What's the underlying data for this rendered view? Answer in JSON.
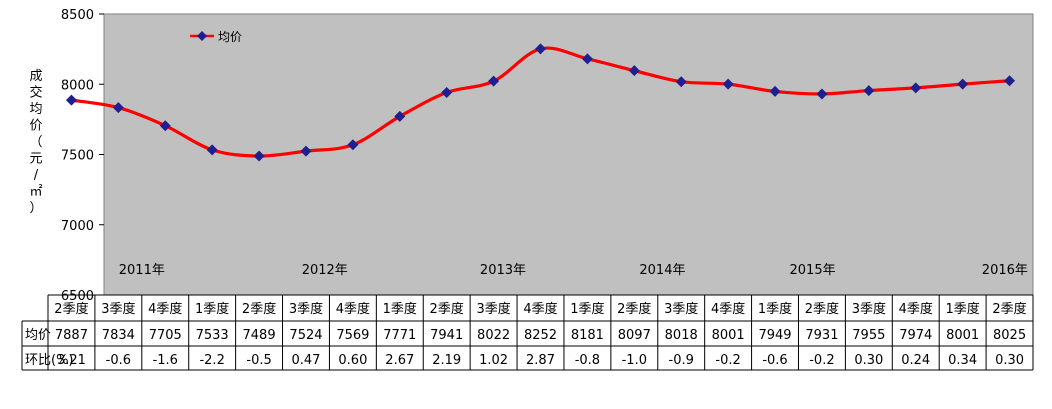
{
  "chart_data": {
    "type": "line",
    "ylabel": "成交均价（元/㎡）",
    "ylim": [
      6500,
      8500
    ],
    "yticks": [
      "6500",
      "7000",
      "7500",
      "8000",
      "8500"
    ],
    "legend": {
      "label": "均价",
      "placement": "top-left"
    },
    "grid": false,
    "background": "#c0c0c0",
    "line_color": "#ff0000",
    "marker_color": "#1f1f8f",
    "years": [
      "2011年",
      "2012年",
      "2013年",
      "2014年",
      "2015年",
      "2016年"
    ],
    "categories": [
      "2季度",
      "3季度",
      "4季度",
      "1季度",
      "2季度",
      "3季度",
      "4季度",
      "1季度",
      "2季度",
      "3季度",
      "4季度",
      "1季度",
      "2季度",
      "3季度",
      "4季度",
      "1季度",
      "2季度",
      "3季度",
      "4季度",
      "1季度",
      "2季度"
    ],
    "series": [
      {
        "name": "均价",
        "values": [
          7887,
          7834,
          7705,
          7533,
          7489,
          7524,
          7569,
          7771,
          7941,
          8022,
          8252,
          8181,
          8097,
          8018,
          8001,
          7949,
          7931,
          7955,
          7974,
          8001,
          8025
        ]
      }
    ],
    "table": {
      "row_labels": [
        "均价",
        "环比(%)"
      ],
      "price": [
        "7887",
        "7834",
        "7705",
        "7533",
        "7489",
        "7524",
        "7569",
        "7771",
        "7941",
        "8022",
        "8252",
        "8181",
        "8097",
        "8018",
        "8001",
        "7949",
        "7931",
        "7955",
        "7974",
        "8001",
        "8025"
      ],
      "change": [
        "3.21",
        "-0.6",
        "-1.6",
        "-2.2",
        "-0.5",
        "0.47",
        "0.60",
        "2.67",
        "2.19",
        "1.02",
        "2.87",
        "-0.8",
        "-1.0",
        "-0.9",
        "-0.2",
        "-0.6",
        "-0.2",
        "0.30",
        "0.24",
        "0.34",
        "0.30"
      ]
    }
  }
}
